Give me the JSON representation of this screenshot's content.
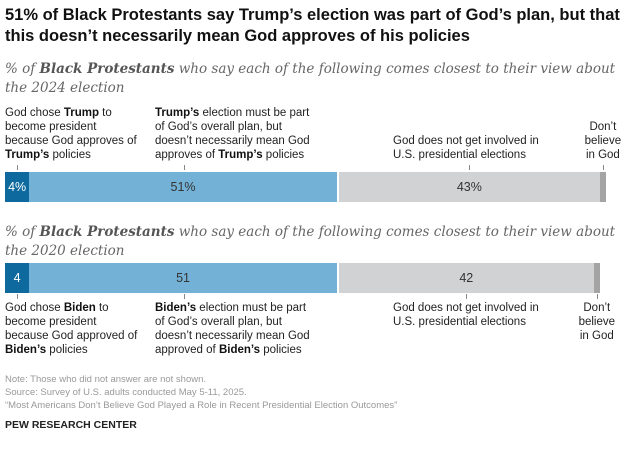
{
  "title": "51% of Black Protestants say Trump’s election was part of God’s plan, but that this doesn’t necessarily mean God approves of his policies",
  "colors": {
    "chose": "#0e6a9e",
    "plan": "#73b2d6",
    "not_involved": "#d1d2d4",
    "dont_believe": "#a4a4a4"
  },
  "chart_data": {
    "type": "bar",
    "orientation": "horizontal",
    "stacked": true,
    "unit": "%",
    "charts": [
      {
        "subtitle_pre": "% of ",
        "subtitle_bold": "Black Protestants",
        "subtitle_post": " who say each of the following comes closest to their view about the 2024 election",
        "labels": [
          {
            "parts": [
              "God chose ",
              {
                "b": "Trump"
              },
              " to become president because God approves of ",
              {
                "b": "Trump’s"
              },
              " policies"
            ]
          },
          {
            "parts": [
              {
                "b": "Trump’s"
              },
              " election must be part of God’s overall plan, but doesn’t necessarily mean God approves of ",
              {
                "b": "Trump’s"
              },
              " policies"
            ]
          },
          {
            "parts": [
              "God does not get involved in U.S. presidential elections"
            ]
          },
          {
            "parts": [
              "Don’t believe in God"
            ]
          }
        ],
        "values": [
          4,
          51,
          43,
          1
        ],
        "data_labels": [
          "4%",
          "51%",
          "43%",
          ""
        ]
      },
      {
        "subtitle_pre": "% of ",
        "subtitle_bold": "Black Protestants",
        "subtitle_post": " who say each of the following comes closest to their view about the 2020 election",
        "labels": [
          {
            "parts": [
              "God chose ",
              {
                "b": "Biden"
              },
              " to become president because God approved of ",
              {
                "b": "Biden’s"
              },
              " policies"
            ]
          },
          {
            "parts": [
              {
                "b": "Biden’s"
              },
              " election must be part of God’s overall plan, but doesn’t necessarily mean God approved of ",
              {
                "b": "Biden’s"
              },
              " policies"
            ]
          },
          {
            "parts": [
              "God does not get involved in U.S. presidential elections"
            ]
          },
          {
            "parts": [
              "Don’t believe in God"
            ]
          }
        ],
        "values": [
          4,
          51,
          42,
          1
        ],
        "data_labels": [
          "4",
          "51",
          "42",
          ""
        ]
      }
    ]
  },
  "footer": {
    "note": "Note: Those who did not answer are not shown.",
    "source": "Source: Survey of U.S. adults conducted May 5-11, 2025.",
    "report": "“Most Americans Don’t Believe God Played a Role in Recent Presidential Election Outcomes”",
    "brand": "PEW RESEARCH CENTER"
  }
}
